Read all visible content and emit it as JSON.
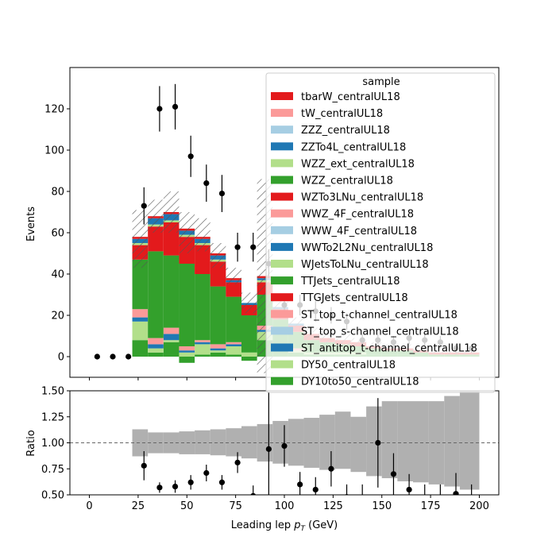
{
  "chart_data": [
    {
      "type": "bar",
      "stacked": true,
      "xlim": [
        -10,
        210
      ],
      "ylim": [
        -10,
        140
      ],
      "ylabel": "Events",
      "yticks": [
        0,
        20,
        40,
        60,
        80,
        100,
        120
      ],
      "bin_edges": [
        22,
        30,
        38,
        46,
        54,
        62,
        70,
        78,
        86,
        94,
        102,
        110,
        118,
        126,
        134,
        142,
        150,
        158,
        166,
        174,
        182,
        190,
        200
      ],
      "legend": {
        "title": "sample",
        "placement": "upper right"
      },
      "colors": {
        "DY10to50_centralUL18": "#33a02c",
        "DY50_centralUL18": "#b2df8a",
        "ST_antitop_t-channel_centralUL18": "#1f78b4",
        "ST_top_s-channel_centralUL18": "#a6cee3",
        "ST_top_t-channel_centralUL18": "#fb9a99",
        "TTGJets_centralUL18": "#e31a1c",
        "TTJets_centralUL18": "#33a02c",
        "WJetsToLNu_centralUL18": "#b2df8a",
        "WWTo2L2Nu_centralUL18": "#1f78b4",
        "WWW_4F_centralUL18": "#a6cee3",
        "WWZ_4F_centralUL18": "#fb9a99",
        "WZTo3LNu_centralUL18": "#e31a1c",
        "WZZ_centralUL18": "#33a02c",
        "WZZ_ext_centralUL18": "#b2df8a",
        "ZZTo4L_centralUL18": "#1f78b4",
        "ZZZ_centralUL18": "#a6cee3",
        "tW_centralUL18": "#fb9a99",
        "tbarW_centralUL18": "#e31a1c"
      },
      "series": [
        {
          "name": "DY10to50_centralUL18",
          "values": [
            8,
            2,
            7,
            -3,
            1,
            2,
            1,
            -2,
            8,
            3,
            2,
            1,
            1,
            1,
            1,
            1,
            1,
            1,
            0,
            0,
            0,
            0
          ]
        },
        {
          "name": "DY50_centralUL18",
          "values": [
            9,
            2,
            1,
            2,
            5,
            1,
            4,
            2,
            4,
            2,
            1,
            1,
            1,
            1,
            1,
            0,
            0,
            0,
            0,
            0,
            0,
            0
          ]
        },
        {
          "name": "ST_antitop_t-channel_centralUL18",
          "values": [
            2,
            2,
            3,
            1,
            1,
            1,
            1,
            0,
            1,
            0,
            0,
            0,
            0,
            0,
            0,
            0,
            0,
            0,
            0,
            0,
            0,
            0
          ]
        },
        {
          "name": "ST_top_t-channel_centralUL18",
          "values": [
            4,
            3,
            3,
            2,
            1,
            2,
            1,
            0,
            2,
            1,
            1,
            0,
            0,
            0,
            0,
            0,
            0,
            0,
            0,
            0,
            0,
            0
          ]
        },
        {
          "name": "TTJets_centralUL18",
          "values": [
            24,
            42,
            35,
            40,
            32,
            28,
            22,
            18,
            15,
            12,
            8,
            6,
            5,
            4,
            3,
            3,
            2,
            2,
            2,
            1,
            1,
            1
          ]
        },
        {
          "name": "WZTo3LNu_centralUL18",
          "values": [
            7,
            12,
            16,
            13,
            14,
            12,
            7,
            5,
            6,
            5,
            3,
            3,
            2,
            2,
            2,
            1,
            1,
            1,
            1,
            1,
            1,
            1
          ]
        },
        {
          "name": "WZZ_ext_centralUL18",
          "values": [
            1,
            1,
            1,
            1,
            1,
            1,
            0,
            0,
            1,
            0,
            0,
            0,
            0,
            0,
            0,
            0,
            0,
            0,
            0,
            0,
            0,
            0
          ]
        },
        {
          "name": "ZZTo4L_centralUL18",
          "values": [
            2,
            3,
            3,
            2,
            2,
            2,
            1,
            1,
            1,
            1,
            1,
            0,
            0,
            0,
            0,
            0,
            0,
            0,
            0,
            0,
            0,
            0
          ]
        },
        {
          "name": "tbarW_centralUL18",
          "values": [
            1,
            1,
            1,
            1,
            1,
            1,
            1,
            0,
            1,
            0,
            0,
            0,
            0,
            0,
            0,
            0,
            0,
            0,
            0,
            0,
            0,
            0
          ]
        }
      ],
      "mc_total": [
        57,
        68,
        70,
        60,
        59,
        49,
        39,
        26,
        39,
        24,
        16,
        11,
        9,
        8,
        7,
        5,
        4,
        4,
        3,
        2,
        2,
        2
      ],
      "mc_uncertainty": [
        14,
        8,
        10,
        10,
        8,
        6,
        4,
        5,
        47,
        6,
        3,
        3,
        3,
        3,
        2,
        2,
        2,
        2,
        1,
        1,
        1,
        1
      ],
      "data_points": {
        "name": "data",
        "x": [
          4,
          12,
          20,
          28,
          36,
          44,
          52,
          60,
          68,
          76,
          84,
          92,
          100,
          108,
          116,
          124,
          132,
          140,
          148,
          156,
          164,
          172,
          180,
          188,
          196
        ],
        "y": [
          0,
          0,
          0,
          73,
          120,
          121,
          97,
          84,
          79,
          53,
          53,
          45,
          25,
          25,
          22,
          20,
          17,
          8,
          8,
          7,
          9,
          8,
          7,
          4,
          4
        ],
        "yerr": [
          0,
          0,
          0,
          9,
          11,
          11,
          10,
          9,
          9,
          7,
          7,
          7,
          5,
          5,
          5,
          4,
          4,
          3,
          3,
          3,
          3,
          3,
          3,
          2,
          2
        ]
      }
    },
    {
      "type": "scatter",
      "xlabel": "Leading lep $p_T$ (GeV)",
      "xlabel_main": "Leading lep ",
      "xlabel_sym": "p",
      "xlabel_sub": "T",
      "xlabel_unit": " (GeV)",
      "ylabel": "Ratio",
      "xlim": [
        -10,
        210
      ],
      "ylim": [
        0.5,
        1.5
      ],
      "xticks": [
        0,
        25,
        50,
        75,
        100,
        125,
        150,
        175,
        200
      ],
      "xtick_labels": [
        "0",
        "25",
        "50",
        "75",
        "100",
        "125",
        "150",
        "175",
        "200"
      ],
      "yticks": [
        0.5,
        0.75,
        1.0,
        1.25,
        1.5
      ],
      "ytick_labels": [
        "0.50",
        "0.75",
        "1.00",
        "1.25",
        "1.50"
      ],
      "reference_line": 1.0,
      "band_bins": [
        22,
        30,
        38,
        46,
        54,
        62,
        70,
        78,
        86,
        94,
        102,
        110,
        118,
        126,
        134,
        142,
        150,
        158,
        166,
        174,
        182,
        190,
        200
      ],
      "band_lo": [
        0.87,
        0.9,
        0.9,
        0.89,
        0.89,
        0.88,
        0.87,
        0.85,
        0.82,
        0.8,
        0.78,
        0.76,
        0.74,
        0.75,
        0.72,
        0.68,
        0.66,
        0.63,
        0.62,
        0.6,
        0.58,
        0.55
      ],
      "band_hi": [
        1.13,
        1.1,
        1.1,
        1.11,
        1.12,
        1.13,
        1.14,
        1.16,
        1.18,
        1.21,
        1.23,
        1.24,
        1.27,
        1.3,
        1.25,
        1.35,
        1.4,
        1.4,
        1.4,
        1.4,
        1.45,
        1.5
      ],
      "x": [
        28,
        36,
        44,
        52,
        60,
        68,
        76,
        84,
        92,
        100,
        108,
        116,
        124,
        132,
        140,
        148,
        156,
        164,
        172,
        180,
        188,
        196
      ],
      "y": [
        0.78,
        0.57,
        0.58,
        0.62,
        0.71,
        0.62,
        0.81,
        0.49,
        0.94,
        0.97,
        0.6,
        0.55,
        0.75,
        0.48,
        0.45,
        1.0,
        0.7,
        0.55,
        0.45,
        0.45,
        0.51,
        0.45
      ],
      "yerr": [
        0.14,
        0.05,
        0.06,
        0.07,
        0.08,
        0.07,
        0.1,
        0.1,
        0.55,
        0.2,
        0.12,
        0.12,
        0.17,
        0.12,
        0.15,
        0.43,
        0.2,
        0.15,
        0.15,
        0.15,
        0.2,
        0.15
      ]
    }
  ]
}
